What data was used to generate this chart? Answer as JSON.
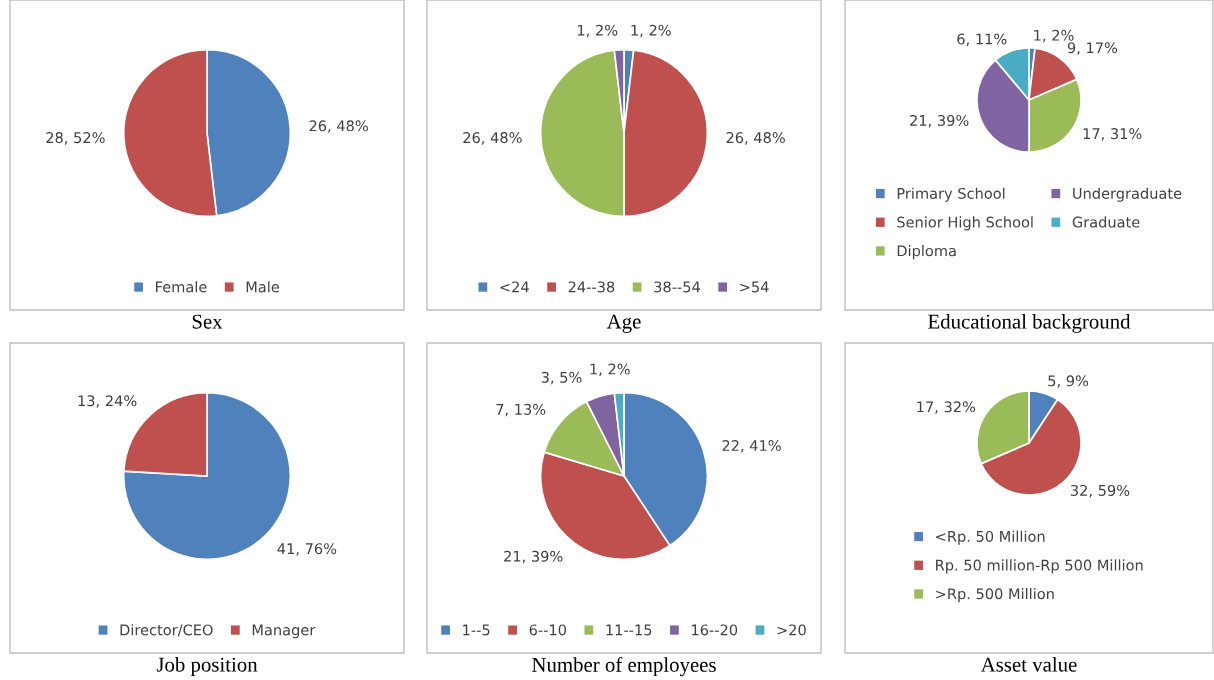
{
  "chart_data": [
    {
      "type": "pie",
      "title": "Sex",
      "categories": [
        "Female",
        "Male"
      ],
      "values": [
        26,
        28
      ],
      "value_labels": [
        "26, 48%",
        "28, 52%"
      ],
      "colors": [
        "#4f81bd",
        "#c0504d"
      ],
      "legend": "bottom"
    },
    {
      "type": "pie",
      "title": "Age",
      "categories": [
        "<24",
        "24--38",
        "38--54",
        ">54"
      ],
      "values": [
        1,
        26,
        26,
        1
      ],
      "value_labels": [
        "1, 2%",
        "26, 48%",
        "26, 48%",
        "1, 2%"
      ],
      "colors": [
        "#4f81bd",
        "#c0504d",
        "#9bbb59",
        "#8064a2"
      ],
      "legend": "bottom"
    },
    {
      "type": "pie",
      "title": "Educational background",
      "categories": [
        "Primary School",
        "Senior High School",
        "Diploma",
        "Undergraduate",
        "Graduate"
      ],
      "values": [
        1,
        9,
        17,
        21,
        6
      ],
      "value_labels": [
        "1, 2%",
        "9, 17%",
        "17, 31%",
        "21, 39%",
        "6, 11%"
      ],
      "colors": [
        "#4f81bd",
        "#c0504d",
        "#9bbb59",
        "#8064a2",
        "#4bacc6"
      ],
      "legend": "bottom"
    },
    {
      "type": "pie",
      "title": "Job position",
      "categories": [
        "Director/CEO",
        "Manager"
      ],
      "values": [
        41,
        13
      ],
      "value_labels": [
        "41, 76%",
        "13, 24%"
      ],
      "colors": [
        "#4f81bd",
        "#c0504d"
      ],
      "legend": "bottom"
    },
    {
      "type": "pie",
      "title": "Number of employees",
      "categories": [
        "1--5",
        "6--10",
        "11--15",
        "16--20",
        ">20"
      ],
      "values": [
        22,
        21,
        7,
        3,
        1
      ],
      "value_labels": [
        "22, 41%",
        "21, 39%",
        "7, 13%",
        "3, 5%",
        "1, 2%"
      ],
      "colors": [
        "#4f81bd",
        "#c0504d",
        "#9bbb59",
        "#8064a2",
        "#4bacc6"
      ],
      "legend": "bottom"
    },
    {
      "type": "pie",
      "title": "Asset value",
      "categories": [
        "<Rp. 50 Million",
        "Rp. 50 million-Rp 500 Million",
        ">Rp. 500 Million"
      ],
      "values": [
        5,
        32,
        17
      ],
      "value_labels": [
        "5, 9%",
        "32, 59%",
        "17, 32%"
      ],
      "colors": [
        "#4f81bd",
        "#c0504d",
        "#9bbb59"
      ],
      "legend": "bottom"
    }
  ]
}
